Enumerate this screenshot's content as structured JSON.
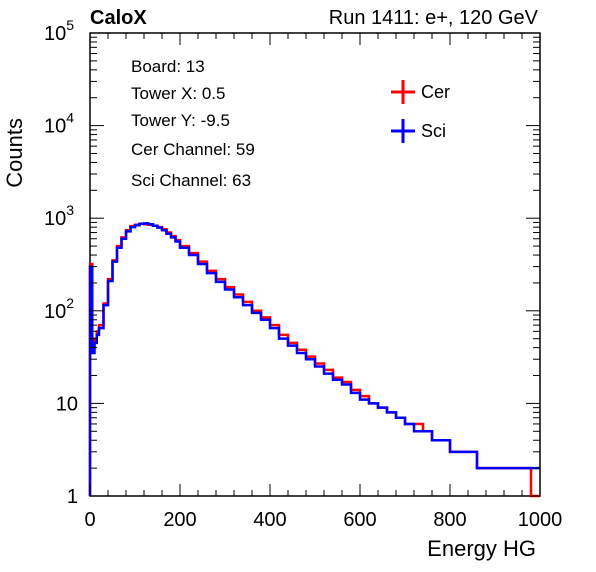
{
  "chart_data": {
    "type": "line",
    "experiment_label": "CaloX",
    "run_label": "Run 1411: e+, 120 GeV",
    "xlabel": "Energy HG",
    "ylabel": "Counts",
    "xlim": [
      0,
      1000
    ],
    "ylim": [
      1,
      100000
    ],
    "log_y": true,
    "grid": false,
    "x_ticks": [
      {
        "value": 0,
        "label": "0"
      },
      {
        "value": 200,
        "label": "200"
      },
      {
        "value": 400,
        "label": "400"
      },
      {
        "value": 600,
        "label": "600"
      },
      {
        "value": 800,
        "label": "800"
      },
      {
        "value": 1000,
        "label": "1000"
      }
    ],
    "y_ticks": [
      {
        "value": 1,
        "base": "1",
        "exp": ""
      },
      {
        "value": 10,
        "base": "10",
        "exp": ""
      },
      {
        "value": 100,
        "base": "10",
        "exp": "2"
      },
      {
        "value": 1000,
        "base": "10",
        "exp": "3"
      },
      {
        "value": 10000,
        "base": "10",
        "exp": "4"
      },
      {
        "value": 100000,
        "base": "10",
        "exp": "5"
      }
    ],
    "info_lines": [
      "Board: 13",
      "Tower X: 0.5",
      "Tower Y: -9.5",
      "Cer Channel: 59",
      "Sci Channel: 63"
    ],
    "legend_position": "top-right",
    "series": [
      {
        "name": "Cer",
        "color": "#ff0000",
        "x": [
          0,
          5,
          10,
          15,
          20,
          30,
          40,
          50,
          60,
          70,
          80,
          90,
          100,
          110,
          120,
          130,
          140,
          150,
          160,
          170,
          180,
          190,
          200,
          220,
          240,
          260,
          280,
          300,
          320,
          340,
          360,
          380,
          400,
          420,
          440,
          460,
          480,
          500,
          520,
          540,
          560,
          580,
          600,
          620,
          640,
          660,
          680,
          700,
          720,
          740,
          760,
          780,
          800,
          820,
          840,
          860,
          880,
          900,
          920,
          940,
          960,
          980,
          1000
        ],
        "values": [
          320,
          40,
          50,
          60,
          70,
          120,
          220,
          350,
          500,
          620,
          740,
          820,
          850,
          870,
          860,
          850,
          830,
          800,
          760,
          700,
          640,
          580,
          500,
          420,
          340,
          270,
          220,
          180,
          150,
          125,
          100,
          85,
          70,
          55,
          45,
          38,
          32,
          27,
          23,
          19,
          17,
          14,
          12,
          10,
          9,
          8,
          7,
          6,
          6,
          5,
          4,
          4,
          3,
          3,
          3,
          2,
          2,
          2,
          2,
          2,
          2,
          1,
          1
        ]
      },
      {
        "name": "Sci",
        "color": "#0000ff",
        "x": [
          0,
          5,
          10,
          15,
          20,
          30,
          40,
          50,
          60,
          70,
          80,
          90,
          100,
          110,
          120,
          130,
          140,
          150,
          160,
          170,
          180,
          190,
          200,
          220,
          240,
          260,
          280,
          300,
          320,
          340,
          360,
          380,
          400,
          420,
          440,
          460,
          480,
          500,
          520,
          540,
          560,
          580,
          600,
          620,
          640,
          660,
          680,
          700,
          720,
          740,
          760,
          780,
          800,
          820,
          840,
          860,
          880,
          900,
          920,
          940,
          960,
          980,
          1000
        ],
        "values": [
          300,
          35,
          45,
          55,
          65,
          115,
          210,
          340,
          480,
          600,
          720,
          800,
          840,
          870,
          880,
          860,
          830,
          790,
          740,
          680,
          620,
          560,
          480,
          400,
          320,
          255,
          205,
          170,
          140,
          115,
          95,
          80,
          65,
          50,
          42,
          35,
          30,
          25,
          21,
          18,
          16,
          13,
          11,
          10,
          9,
          8,
          7,
          6,
          5,
          5,
          4,
          4,
          3,
          3,
          3,
          2,
          2,
          2,
          2,
          2,
          2,
          2,
          2
        ]
      }
    ]
  }
}
